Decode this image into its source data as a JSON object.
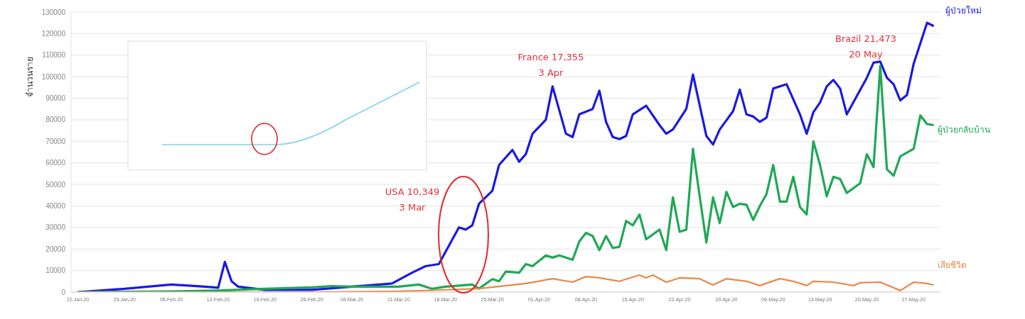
{
  "chart_data": {
    "type": "line",
    "ylabel": "จำนวนราย",
    "xlim": [
      "--01-21",
      "--05-31"
    ],
    "xticks": [
      {
        "value": "--01-22",
        "label": "22-Jan-20"
      },
      {
        "value": "--01-29",
        "label": "29-Jan-20"
      },
      {
        "value": "--02-05",
        "label": "05-Feb-20"
      },
      {
        "value": "--02-12",
        "label": "12-Feb-20"
      },
      {
        "value": "--02-19",
        "label": "19-Feb-20"
      },
      {
        "value": "--02-26",
        "label": "26-Feb-20"
      },
      {
        "value": "--03-04",
        "label": "04-Mar-20"
      },
      {
        "value": "--03-11",
        "label": "11-Mar-20"
      },
      {
        "value": "--03-18",
        "label": "18-Mar-20"
      },
      {
        "value": "--03-25",
        "label": "25-Mar-20"
      },
      {
        "value": "--04-01",
        "label": "01-Apr-20"
      },
      {
        "value": "--04-08",
        "label": "08-Apr-20"
      },
      {
        "value": "--04-15",
        "label": "15-Apr-20"
      },
      {
        "value": "--04-22",
        "label": "22-Apr-20"
      },
      {
        "value": "--04-29",
        "label": "29-Apr-20"
      },
      {
        "value": "--05-06",
        "label": "06-May-20"
      },
      {
        "value": "--05-13",
        "label": "13-May-20"
      },
      {
        "value": "--05-20",
        "label": "20-May-20"
      },
      {
        "value": "--05-27",
        "label": "27-May-20"
      }
    ],
    "ylim": [
      0,
      130000
    ],
    "yticks": [
      0,
      10000,
      20000,
      30000,
      40000,
      50000,
      60000,
      70000,
      80000,
      90000,
      100000,
      110000,
      120000,
      130000
    ],
    "grid": "y",
    "marker": "none",
    "line_style": "solid",
    "annotations": [
      "USA 10,349\n3 Mar",
      "France 17,355\n3 Apr",
      "Brazil 21,473\n20 May"
    ],
    "series": [
      {
        "name": "ผู้ป่วยใหม่",
        "color": "#1a1ae0",
        "x": [
          "--01-22",
          "--01-29",
          "--02-05",
          "--02-10",
          "--02-12",
          "--02-13",
          "--02-14",
          "--02-15",
          "--02-19",
          "--02-26",
          "--03-04",
          "--03-10",
          "--03-13",
          "--03-15",
          "--03-17",
          "--03-20",
          "--03-21",
          "--03-22",
          "--03-23",
          "--03-25",
          "--03-26",
          "--03-28",
          "--03-29",
          "--03-30",
          "--03-31",
          "--04-02",
          "--04-03",
          "--04-05",
          "--04-06",
          "--04-07",
          "--04-09",
          "--04-10",
          "--04-11",
          "--04-12",
          "--04-13",
          "--04-14",
          "--04-15",
          "--04-17",
          "--04-19",
          "--04-20",
          "--04-21",
          "--04-23",
          "--04-24",
          "--04-26",
          "--04-27",
          "--04-28",
          "--04-30",
          "--05-01",
          "--05-02",
          "--05-03",
          "--05-04",
          "--05-05",
          "--05-06",
          "--05-08",
          "--05-10",
          "--05-11",
          "--05-12",
          "--05-13",
          "--05-14",
          "--05-15",
          "--05-16",
          "--05-17",
          "--05-20",
          "--05-21",
          "--05-22",
          "--05-23",
          "--05-24",
          "--05-25",
          "--05-26",
          "--05-27",
          "--05-29",
          "--05-30"
        ],
        "values": [
          0,
          1500,
          3500,
          2500,
          2000,
          14000,
          5000,
          2500,
          1000,
          1000,
          2500,
          4000,
          9000,
          12000,
          13000,
          30000,
          29000,
          31000,
          41000,
          47000,
          59000,
          66000,
          60500,
          64000,
          73500,
          80000,
          95500,
          73500,
          72000,
          82500,
          85000,
          93500,
          79000,
          72000,
          71000,
          72500,
          82500,
          86500,
          77500,
          73500,
          75500,
          85000,
          101000,
          72500,
          68500,
          75500,
          84000,
          94000,
          82500,
          81500,
          79000,
          81000,
          94500,
          96500,
          82500,
          73500,
          83500,
          88000,
          95500,
          98500,
          94500,
          82500,
          99500,
          106500,
          107000,
          99500,
          96500,
          89000,
          91500,
          106000,
          125000,
          123500
        ]
      },
      {
        "name": "ผู้ป่วยกลับบ้าน",
        "color": "#1fa855",
        "x": [
          "--01-22",
          "--02-05",
          "--02-12",
          "--02-19",
          "--02-26",
          "--03-01",
          "--03-04",
          "--03-11",
          "--03-14",
          "--03-16",
          "--03-18",
          "--03-22",
          "--03-23",
          "--03-25",
          "--03-26",
          "--03-27",
          "--03-29",
          "--03-30",
          "--03-31",
          "--04-02",
          "--04-03",
          "--04-04",
          "--04-06",
          "--04-07",
          "--04-08",
          "--04-09",
          "--04-10",
          "--04-11",
          "--04-12",
          "--04-13",
          "--04-14",
          "--04-15",
          "--04-16",
          "--04-17",
          "--04-19",
          "--04-20",
          "--04-21",
          "--04-22",
          "--04-23",
          "--04-24",
          "--04-25",
          "--04-26",
          "--04-27",
          "--04-28",
          "--04-29",
          "--04-30",
          "--05-01",
          "--05-02",
          "--05-03",
          "--05-04",
          "--05-05",
          "--05-06",
          "--05-07",
          "--05-08",
          "--05-09",
          "--05-10",
          "--05-11",
          "--05-12",
          "--05-13",
          "--05-14",
          "--05-15",
          "--05-16",
          "--05-17",
          "--05-19",
          "--05-20",
          "--05-21",
          "--05-22",
          "--05-23",
          "--05-24",
          "--05-25",
          "--05-27",
          "--05-28",
          "--05-29",
          "--05-30"
        ],
        "values": [
          0,
          300,
          700,
          1500,
          2200,
          2800,
          2500,
          2500,
          3500,
          1500,
          2500,
          3500,
          1600,
          6000,
          5000,
          9500,
          9000,
          13000,
          12000,
          17000,
          16000,
          17000,
          15000,
          23500,
          27500,
          26000,
          19500,
          26000,
          20500,
          21000,
          33000,
          31000,
          36000,
          24500,
          29000,
          19500,
          44000,
          28000,
          29000,
          66500,
          44500,
          23000,
          44000,
          32000,
          46500,
          39500,
          41000,
          40500,
          33500,
          40000,
          45500,
          59000,
          42000,
          42000,
          53500,
          39500,
          36000,
          70000,
          59000,
          44500,
          53500,
          52500,
          46000,
          50500,
          64000,
          58000,
          105000,
          57000,
          54000,
          63000,
          66500,
          82000,
          78000,
          77500
        ]
      },
      {
        "name": "เสียชีวิต",
        "color": "#e8884a",
        "x": [
          "--01-22",
          "--02-26",
          "--03-10",
          "--03-17",
          "--03-23",
          "--03-30",
          "--04-03",
          "--04-06",
          "--04-08",
          "--04-10",
          "--04-13",
          "--04-16",
          "--04-17",
          "--04-18",
          "--04-20",
          "--04-22",
          "--04-25",
          "--04-27",
          "--04-29",
          "--05-02",
          "--05-04",
          "--05-07",
          "--05-09",
          "--05-11",
          "--05-12",
          "--05-15",
          "--05-18",
          "--05-19",
          "--05-22",
          "--05-25",
          "--05-27",
          "--05-29",
          "--05-30"
        ],
        "values": [
          0,
          0,
          300,
          900,
          1600,
          4000,
          6200,
          4600,
          7200,
          6600,
          5000,
          7900,
          6600,
          7900,
          4600,
          6600,
          6200,
          3300,
          6200,
          5000,
          3000,
          6200,
          5000,
          3000,
          5000,
          4600,
          3000,
          4300,
          4600,
          700,
          4600,
          4000,
          3300
        ]
      }
    ]
  }
}
